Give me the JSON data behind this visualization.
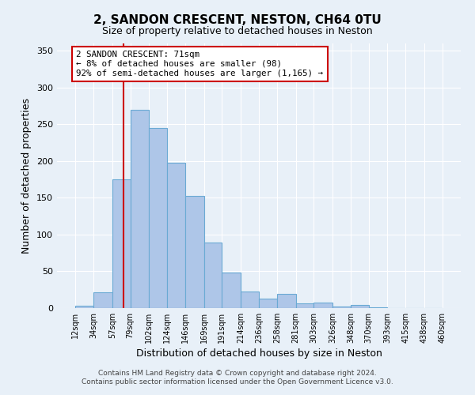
{
  "title": "2, SANDON CRESCENT, NESTON, CH64 0TU",
  "subtitle": "Size of property relative to detached houses in Neston",
  "xlabel": "Distribution of detached houses by size in Neston",
  "ylabel": "Number of detached properties",
  "footer_line1": "Contains HM Land Registry data © Crown copyright and database right 2024.",
  "footer_line2": "Contains public sector information licensed under the Open Government Licence v3.0.",
  "bin_labels": [
    "12sqm",
    "34sqm",
    "57sqm",
    "79sqm",
    "102sqm",
    "124sqm",
    "146sqm",
    "169sqm",
    "191sqm",
    "214sqm",
    "236sqm",
    "258sqm",
    "281sqm",
    "303sqm",
    "326sqm",
    "348sqm",
    "370sqm",
    "393sqm",
    "415sqm",
    "438sqm",
    "460sqm"
  ],
  "bin_edges": [
    12,
    34,
    57,
    79,
    102,
    124,
    146,
    169,
    191,
    214,
    236,
    258,
    281,
    303,
    326,
    348,
    370,
    393,
    415,
    438,
    460
  ],
  "bar_heights": [
    3,
    22,
    175,
    270,
    245,
    198,
    153,
    89,
    48,
    23,
    13,
    19,
    6,
    7,
    2,
    4,
    1,
    0,
    0,
    0
  ],
  "bar_color": "#aec6e8",
  "bar_edge_color": "#6aaad4",
  "background_color": "#e8f0f8",
  "plot_bg_color": "#e8f0f8",
  "grid_color": "#ffffff",
  "vline_x": 71,
  "vline_color": "#cc0000",
  "annotation_text": "2 SANDON CRESCENT: 71sqm\n← 8% of detached houses are smaller (98)\n92% of semi-detached houses are larger (1,165) →",
  "annotation_box_color": "#ffffff",
  "annotation_box_edge": "#cc0000",
  "ylim": [
    0,
    360
  ],
  "yticks": [
    0,
    50,
    100,
    150,
    200,
    250,
    300,
    350
  ]
}
